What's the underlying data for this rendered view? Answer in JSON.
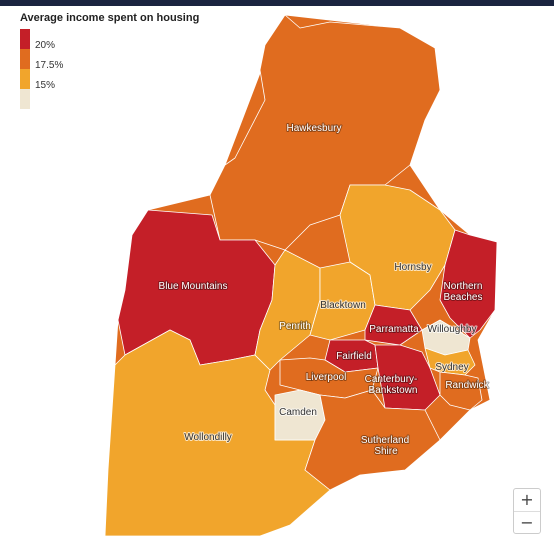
{
  "colors": {
    "topbar": "#1a2440",
    "bin_20": "#c41f28",
    "bin_17_5": "#e06c1f",
    "bin_15": "#f1a52c",
    "bin_low": "#efe6d2"
  },
  "legend": {
    "title": "Average income spent on housing",
    "ticks": [
      "20%",
      "17.5%",
      "15%"
    ]
  },
  "map": {
    "regions": [
      {
        "name": "Hawkesbury",
        "bin": "17.5"
      },
      {
        "name": "Blue Mountains",
        "bin": "20"
      },
      {
        "name": "Wollondilly",
        "bin": "15"
      },
      {
        "name": "Penrith",
        "bin": "15"
      },
      {
        "name": "Blacktown",
        "bin": "15"
      },
      {
        "name": "Hornsby",
        "bin": "15"
      },
      {
        "name": "Northern Beaches",
        "bin": "20"
      },
      {
        "name": "Parramatta",
        "bin": "20"
      },
      {
        "name": "Willoughby",
        "bin": "low"
      },
      {
        "name": "Fairfield",
        "bin": "20"
      },
      {
        "name": "Liverpool",
        "bin": "17.5"
      },
      {
        "name": "Canterbury-Bankstown",
        "bin": "20"
      },
      {
        "name": "Sydney",
        "bin": "15"
      },
      {
        "name": "Randwick",
        "bin": "17.5"
      },
      {
        "name": "Camden",
        "bin": "low"
      },
      {
        "name": "Sutherland Shire",
        "bin": "17.5"
      }
    ],
    "labels": {
      "hawkesbury": "Hawkesbury",
      "blue_mountains": "Blue Mountains",
      "wollondilly": "Wollondilly",
      "penrith": "Penrith",
      "blacktown": "Blacktown",
      "hornsby": "Hornsby",
      "northern_1": "Northern",
      "northern_2": "Beaches",
      "parramatta": "Parramatta",
      "willoughby": "Willoughby",
      "fairfield": "Fairfield",
      "liverpool": "Liverpool",
      "canterbury_1": "Canterbury-",
      "canterbury_2": "Bankstown",
      "sydney": "Sydney",
      "randwick": "Randwick",
      "camden": "Camden",
      "sutherland_1": "Sutherland",
      "sutherland_2": "Shire"
    }
  },
  "zoom": {
    "in": "+",
    "out": "−"
  }
}
